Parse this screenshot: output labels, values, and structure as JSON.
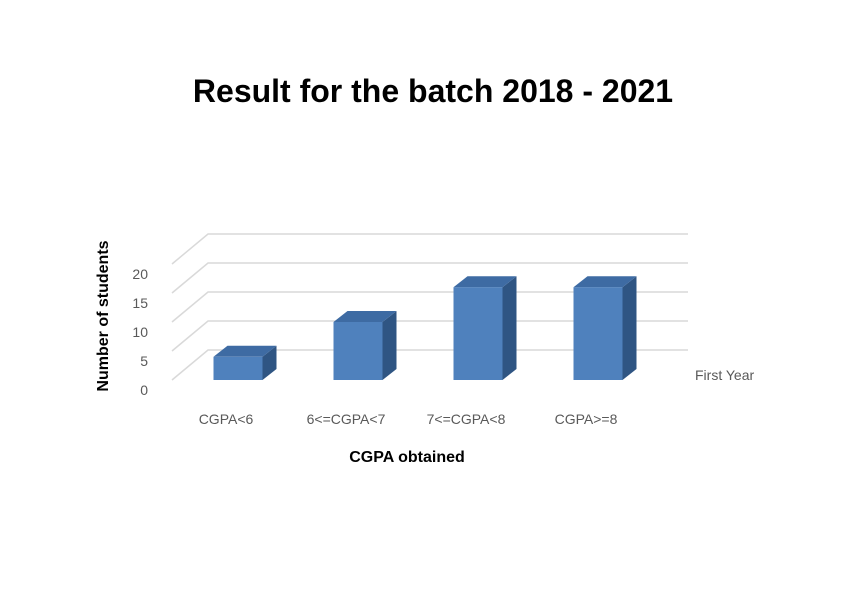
{
  "chart_data": {
    "type": "bar",
    "title": "Result for the batch 2018 - 2021",
    "categories": [
      "CGPA<6",
      "6<=CGPA<7",
      "7<=CGPA<8",
      "CGPA>=8"
    ],
    "series": [
      {
        "name": "First Year",
        "values": [
          4,
          10,
          16,
          16
        ]
      }
    ],
    "xlabel": "CGPA obtained",
    "ylabel": "Number of students",
    "ylim": [
      0,
      20
    ],
    "yticks": [
      "0",
      "5",
      "10",
      "15",
      "20"
    ],
    "grid": true,
    "legend_position": "right",
    "colors": {
      "front": "#4f81bd",
      "top": "#3e6ba3",
      "side": "#2f5583",
      "grid": "#d9d9d9"
    }
  }
}
